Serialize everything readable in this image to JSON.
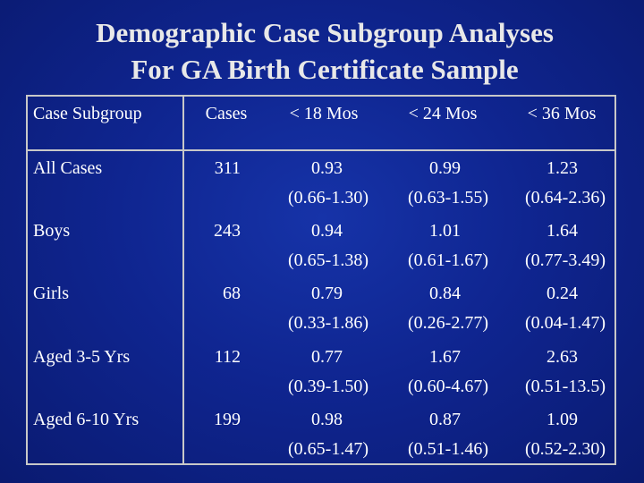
{
  "title": {
    "line1": "Demographic Case Subgroup Analyses",
    "line2": "For GA Birth Certificate Sample"
  },
  "table": {
    "headers": [
      "Case Subgroup",
      "Cases",
      "< 18 Mos",
      "< 24 Mos",
      "< 36 Mos"
    ],
    "rows": [
      {
        "subgroup": "All Cases",
        "cases": "311",
        "m18": "0.93",
        "m18_ci": "(0.66-1.30)",
        "m24": "0.99",
        "m24_ci": "(0.63-1.55)",
        "m36": "1.23",
        "m36_ci": "(0.64-2.36)"
      },
      {
        "subgroup": "Boys",
        "cases": "243",
        "m18": "0.94",
        "m18_ci": "(0.65-1.38)",
        "m24": "1.01",
        "m24_ci": "(0.61-1.67)",
        "m36": "1.64",
        "m36_ci": "(0.77-3.49)"
      },
      {
        "subgroup": "Girls",
        "cases": "68",
        "m18": "0.79",
        "m18_ci": "(0.33-1.86)",
        "m24": "0.84",
        "m24_ci": "(0.26-2.77)",
        "m36": "0.24",
        "m36_ci": "(0.04-1.47)"
      },
      {
        "subgroup": "Aged 3-5 Yrs",
        "cases": "112",
        "m18": "0.77",
        "m18_ci": "(0.39-1.50)",
        "m24": "1.67",
        "m24_ci": "(0.60-4.67)",
        "m36": "2.63",
        "m36_ci": "(0.51-13.5)"
      },
      {
        "subgroup": "Aged 6-10 Yrs",
        "cases": "199",
        "m18": "0.98",
        "m18_ci": "(0.65-1.47)",
        "m24": "0.87",
        "m24_ci": "(0.51-1.46)",
        "m36": "1.09",
        "m36_ci": "(0.52-2.30)"
      }
    ]
  }
}
